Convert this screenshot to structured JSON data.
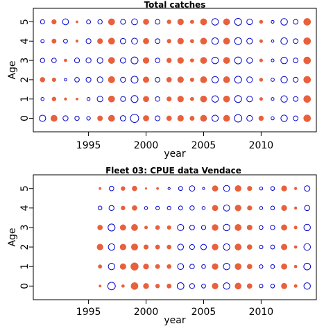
{
  "chart_data": [
    {
      "type": "scatter",
      "title": "Total catches",
      "xlabel": "year",
      "ylabel": "Age",
      "xlim": [
        1990.2,
        2014.8
      ],
      "ylim": [
        -0.7,
        5.7
      ],
      "x_ticks": [
        1995,
        2000,
        2005,
        2010
      ],
      "y_ticks": [
        0,
        1,
        2,
        3,
        4,
        5
      ],
      "series": [],
      "colors": {
        "positive": "#e8603c",
        "negative": "#0000cc"
      },
      "x": [
        1991,
        1992,
        1993,
        1994,
        1995,
        1996,
        1997,
        1998,
        1999,
        2000,
        2001,
        2002,
        2003,
        2004,
        2005,
        2006,
        2007,
        2008,
        2009,
        2010,
        2011,
        2012,
        2013,
        2014
      ],
      "residuals": {
        "0": [
          -2.5,
          2.5,
          -1.6,
          -1.2,
          -0.8,
          1.6,
          2.5,
          -1.8,
          -4.2,
          2.0,
          -1.5,
          1.5,
          2.2,
          1.2,
          2.5,
          -2.5,
          2.5,
          -3.5,
          -2.0,
          1.4,
          -0.6,
          -2.6,
          -1.4,
          3.0
        ],
        "1": [
          -0.6,
          1.0,
          0.4,
          0.3,
          -0.6,
          -2.0,
          2.5,
          -1.5,
          -3.0,
          2.0,
          -1.3,
          1.3,
          2.2,
          0.8,
          2.5,
          -2.6,
          2.5,
          -3.0,
          -2.0,
          0.6,
          -0.5,
          -2.6,
          -1.4,
          3.0
        ],
        "2": [
          1.4,
          0.9,
          -0.4,
          -1.3,
          -1.5,
          -2.0,
          2.6,
          -1.6,
          -3.0,
          2.1,
          -1.4,
          1.5,
          2.2,
          0.9,
          2.5,
          -2.6,
          2.5,
          -3.0,
          -2.0,
          0.7,
          -0.7,
          -2.6,
          -1.5,
          3.0
        ],
        "3": [
          -1.2,
          -1.3,
          0.5,
          -1.5,
          -1.6,
          -2.0,
          2.5,
          -1.8,
          -3.0,
          2.2,
          -1.3,
          1.4,
          2.2,
          0.8,
          2.5,
          -2.7,
          2.5,
          -3.0,
          -2.0,
          0.6,
          -0.5,
          -2.7,
          -1.4,
          3.0
        ],
        "4": [
          -0.7,
          1.2,
          -1.0,
          0.4,
          -1.5,
          1.7,
          2.5,
          -1.8,
          -2.2,
          2.0,
          -1.4,
          1.0,
          2.2,
          0.8,
          2.5,
          -2.7,
          2.5,
          -3.0,
          -2.0,
          0.6,
          -0.4,
          -2.7,
          -1.4,
          3.0
        ],
        "5": [
          -1.1,
          1.3,
          -2.2,
          0.3,
          -1.0,
          -1.2,
          2.5,
          -1.5,
          -2.2,
          1.9,
          -1.4,
          1.0,
          2.2,
          0.8,
          2.5,
          -2.7,
          2.5,
          -3.0,
          -2.0,
          0.7,
          -0.5,
          -2.7,
          -1.4,
          3.0
        ]
      }
    },
    {
      "type": "scatter",
      "title": "Fleet 03:  CPUE data Vendace",
      "xlabel": "year",
      "ylabel": "Age",
      "xlim": [
        1990.2,
        2014.8
      ],
      "ylim": [
        -0.7,
        5.7
      ],
      "x_ticks": [
        1995,
        2000,
        2005,
        2010
      ],
      "y_ticks": [
        0,
        1,
        2,
        3,
        4,
        5
      ],
      "series": [],
      "colors": {
        "positive": "#e8603c",
        "negative": "#0000cc"
      },
      "x": [
        1996,
        1997,
        1998,
        1999,
        2000,
        2001,
        2002,
        2003,
        2004,
        2005,
        2006,
        2007,
        2008,
        2009,
        2010,
        2011,
        2012,
        2013,
        2014
      ],
      "residuals": {
        "0": [
          0.3,
          -3.5,
          0.5,
          3.0,
          1.8,
          1.0,
          1.2,
          -2.8,
          -1.5,
          -1.0,
          2.2,
          -2.6,
          2.4,
          1.5,
          -0.8,
          -0.9,
          2.0,
          0.6,
          -2.6
        ],
        "1": [
          0.8,
          -2.6,
          2.1,
          3.5,
          1.8,
          1.2,
          1.1,
          -2.2,
          -1.3,
          -0.9,
          2.2,
          -2.6,
          2.4,
          1.5,
          -0.8,
          -0.9,
          2.0,
          0.5,
          -2.8
        ],
        "2": [
          2.2,
          -2.6,
          2.2,
          2.6,
          1.3,
          1.2,
          1.1,
          -2.1,
          -1.5,
          -1.9,
          2.3,
          -2.6,
          2.5,
          1.5,
          -0.8,
          -1.0,
          2.1,
          0.5,
          -2.7
        ],
        "3": [
          1.5,
          -3.0,
          2.0,
          2.5,
          0.6,
          1.1,
          0.9,
          -2.4,
          -1.4,
          -1.1,
          2.3,
          -2.6,
          2.5,
          1.6,
          -0.9,
          -1.2,
          2.0,
          0.6,
          -2.6
        ],
        "4": [
          -0.9,
          -1.6,
          1.0,
          1.5,
          -0.6,
          -0.8,
          -0.8,
          -1.0,
          -1.2,
          -0.6,
          2.0,
          -2.3,
          2.3,
          1.3,
          -0.6,
          -0.9,
          1.8,
          0.4,
          -1.7
        ],
        "5": [
          0.3,
          -1.3,
          1.0,
          1.5,
          0.2,
          0.3,
          -0.3,
          -1.0,
          -1.8,
          -0.3,
          2.0,
          -2.3,
          2.3,
          1.3,
          -0.6,
          -0.9,
          1.8,
          0.4,
          -1.9
        ]
      }
    }
  ]
}
